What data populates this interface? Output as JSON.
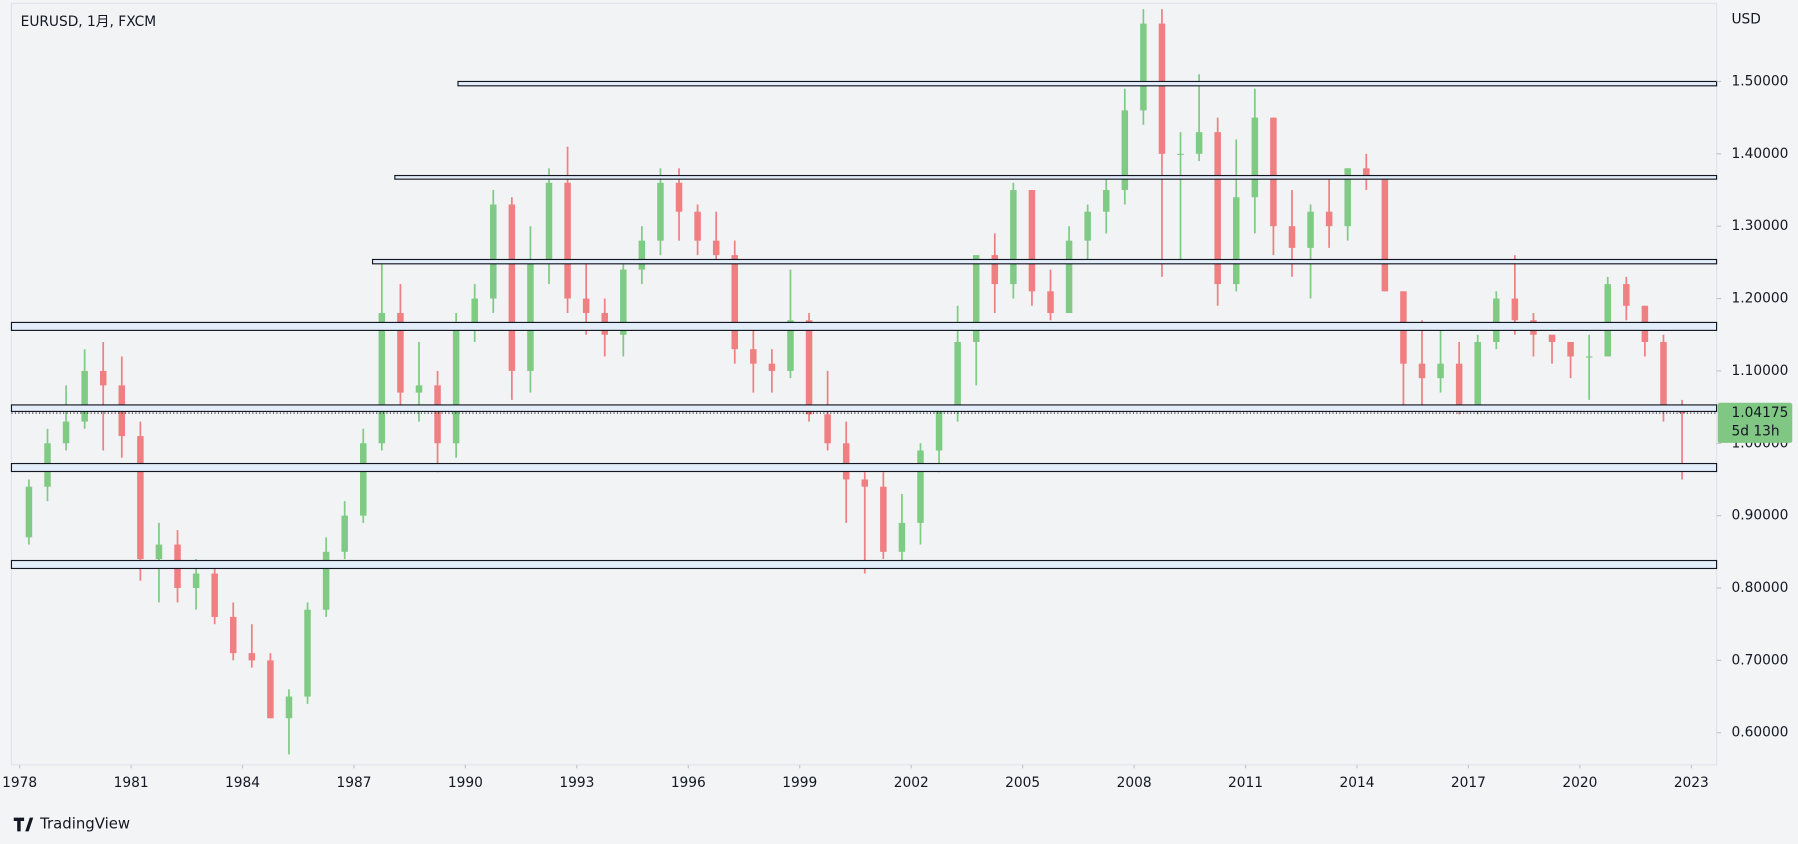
{
  "chart_data": {
    "type": "candlestick",
    "title": "EURUSD, 1月, FXCM",
    "y_axis_label": "USD",
    "brand": "TradingView",
    "up_color": "#7fcb84",
    "down_color": "#f07f82",
    "xlim": [
      1977.78,
      2023.68
    ],
    "xticks": [
      1978,
      1981,
      1984,
      1987,
      1990,
      1993,
      1996,
      1999,
      2002,
      2005,
      2008,
      2011,
      2014,
      2017,
      2020,
      2023
    ],
    "ylim": [
      0.5556,
      1.6078
    ],
    "yticks": [
      {
        "value": 0.6,
        "label": "0.60000"
      },
      {
        "value": 0.7,
        "label": "0.70000"
      },
      {
        "value": 0.8,
        "label": "0.80000"
      },
      {
        "value": 0.9,
        "label": "0.90000"
      },
      {
        "value": 1.0,
        "label": "1.00000"
      },
      {
        "value": 1.1,
        "label": "1.10000"
      },
      {
        "value": 1.2,
        "label": "1.20000"
      },
      {
        "value": 1.3,
        "label": "1.30000"
      },
      {
        "value": 1.4,
        "label": "1.40000"
      },
      {
        "value": 1.5,
        "label": "1.50000"
      }
    ],
    "x": [
      1978.0,
      1978.5,
      1979.0,
      1979.5,
      1980.0,
      1980.5,
      1981.0,
      1981.5,
      1982.0,
      1982.5,
      1983.0,
      1983.5,
      1984.0,
      1984.5,
      1985.0,
      1985.5,
      1986.0,
      1986.5,
      1987.0,
      1987.5,
      1988.0,
      1988.5,
      1989.0,
      1989.5,
      1990.0,
      1990.5,
      1991.0,
      1991.5,
      1992.0,
      1992.5,
      1993.0,
      1993.5,
      1994.0,
      1994.5,
      1995.0,
      1995.5,
      1996.0,
      1996.5,
      1997.0,
      1997.5,
      1998.0,
      1998.5,
      1999.0,
      1999.5,
      2000.0,
      2000.5,
      2001.0,
      2001.5,
      2002.0,
      2002.5,
      2003.0,
      2003.5,
      2004.0,
      2004.5,
      2005.0,
      2005.5,
      2006.0,
      2006.5,
      2007.0,
      2007.5,
      2008.0,
      2008.5,
      2009.0,
      2009.5,
      2010.0,
      2010.5,
      2011.0,
      2011.5,
      2012.0,
      2012.5,
      2013.0,
      2013.5,
      2014.0,
      2014.5,
      2015.0,
      2015.5,
      2016.0,
      2016.5,
      2017.0,
      2017.5,
      2018.0,
      2018.5,
      2019.0,
      2019.5,
      2020.0,
      2020.5,
      2021.0,
      2021.5,
      2022.0,
      2022.5
    ],
    "open": [
      0.87,
      0.94,
      1.0,
      1.03,
      1.1,
      1.08,
      1.01,
      0.84,
      0.86,
      0.8,
      0.82,
      0.76,
      0.71,
      0.7,
      0.62,
      0.65,
      0.77,
      0.85,
      0.9,
      1.0,
      1.18,
      1.07,
      1.08,
      1.0,
      1.16,
      1.2,
      1.33,
      1.1,
      1.25,
      1.36,
      1.2,
      1.18,
      1.15,
      1.24,
      1.28,
      1.36,
      1.32,
      1.28,
      1.26,
      1.13,
      1.11,
      1.1,
      1.17,
      1.04,
      1.0,
      0.95,
      0.94,
      0.85,
      0.89,
      0.99,
      1.05,
      1.14,
      1.26,
      1.22,
      1.35,
      1.21,
      1.18,
      1.28,
      1.32,
      1.35,
      1.46,
      1.58,
      1.4,
      1.4,
      1.43,
      1.22,
      1.34,
      1.45,
      1.3,
      1.27,
      1.32,
      1.3,
      1.38,
      1.37,
      1.21,
      1.11,
      1.09,
      1.11,
      1.05,
      1.14,
      1.2,
      1.17,
      1.15,
      1.14,
      1.12,
      1.12,
      1.22,
      1.19,
      1.14,
      1.05
    ],
    "high": [
      0.95,
      1.02,
      1.08,
      1.13,
      1.14,
      1.12,
      1.03,
      0.89,
      0.88,
      0.84,
      0.83,
      0.78,
      0.75,
      0.71,
      0.66,
      0.78,
      0.87,
      0.92,
      1.02,
      1.25,
      1.22,
      1.14,
      1.1,
      1.18,
      1.22,
      1.35,
      1.34,
      1.3,
      1.38,
      1.41,
      1.25,
      1.2,
      1.25,
      1.3,
      1.38,
      1.38,
      1.33,
      1.32,
      1.28,
      1.16,
      1.13,
      1.24,
      1.18,
      1.1,
      1.03,
      0.96,
      0.96,
      0.93,
      1.0,
      1.05,
      1.19,
      1.26,
      1.29,
      1.36,
      1.35,
      1.24,
      1.3,
      1.33,
      1.37,
      1.49,
      1.6,
      1.6,
      1.43,
      1.51,
      1.45,
      1.42,
      1.49,
      1.45,
      1.35,
      1.33,
      1.37,
      1.38,
      1.4,
      1.37,
      1.21,
      1.17,
      1.16,
      1.14,
      1.15,
      1.21,
      1.26,
      1.18,
      1.15,
      1.14,
      1.15,
      1.23,
      1.23,
      1.19,
      1.15,
      1.06
    ],
    "low": [
      0.86,
      0.92,
      0.99,
      1.02,
      0.99,
      0.98,
      0.81,
      0.78,
      0.78,
      0.77,
      0.75,
      0.7,
      0.69,
      0.62,
      0.57,
      0.64,
      0.76,
      0.84,
      0.89,
      0.99,
      1.05,
      1.03,
      0.96,
      0.98,
      1.14,
      1.18,
      1.06,
      1.07,
      1.22,
      1.18,
      1.15,
      1.12,
      1.12,
      1.22,
      1.26,
      1.28,
      1.26,
      1.25,
      1.11,
      1.07,
      1.07,
      1.09,
      1.03,
      0.99,
      0.89,
      0.82,
      0.84,
      0.83,
      0.86,
      0.96,
      1.03,
      1.08,
      1.18,
      1.2,
      1.19,
      1.17,
      1.18,
      1.25,
      1.29,
      1.33,
      1.44,
      1.23,
      1.25,
      1.39,
      1.19,
      1.21,
      1.29,
      1.26,
      1.23,
      1.2,
      1.27,
      1.28,
      1.35,
      1.21,
      1.05,
      1.05,
      1.07,
      1.04,
      1.04,
      1.13,
      1.15,
      1.12,
      1.11,
      1.09,
      1.06,
      1.12,
      1.17,
      1.12,
      1.03,
      0.95
    ],
    "close": [
      0.94,
      1.0,
      1.03,
      1.1,
      1.08,
      1.01,
      0.84,
      0.86,
      0.8,
      0.82,
      0.76,
      0.71,
      0.7,
      0.62,
      0.65,
      0.77,
      0.85,
      0.9,
      1.0,
      1.18,
      1.07,
      1.08,
      1.0,
      1.16,
      1.2,
      1.33,
      1.1,
      1.25,
      1.36,
      1.2,
      1.18,
      1.15,
      1.24,
      1.28,
      1.36,
      1.32,
      1.28,
      1.26,
      1.13,
      1.11,
      1.1,
      1.17,
      1.04,
      1.0,
      0.95,
      0.94,
      0.85,
      0.89,
      0.99,
      1.05,
      1.14,
      1.26,
      1.22,
      1.35,
      1.21,
      1.18,
      1.28,
      1.32,
      1.35,
      1.46,
      1.58,
      1.4,
      1.4,
      1.43,
      1.22,
      1.34,
      1.45,
      1.3,
      1.27,
      1.32,
      1.3,
      1.38,
      1.37,
      1.21,
      1.11,
      1.09,
      1.11,
      1.05,
      1.14,
      1.2,
      1.17,
      1.15,
      1.14,
      1.12,
      1.12,
      1.22,
      1.19,
      1.14,
      1.05,
      1.04175
    ],
    "zones": [
      {
        "low": 1.494,
        "high": 1.5,
        "start": 1989.8
      },
      {
        "low": 1.365,
        "high": 1.37,
        "start": 1988.1
      },
      {
        "low": 1.248,
        "high": 1.254,
        "start": 1987.5
      },
      {
        "low": 1.156,
        "high": 1.167
      },
      {
        "low": 1.044,
        "high": 1.053
      },
      {
        "low": 0.961,
        "high": 0.972
      },
      {
        "low": 0.827,
        "high": 0.838
      }
    ],
    "last_price": {
      "value": 1.04175,
      "label": "1.04175"
    },
    "countdown": "5d 13h"
  }
}
